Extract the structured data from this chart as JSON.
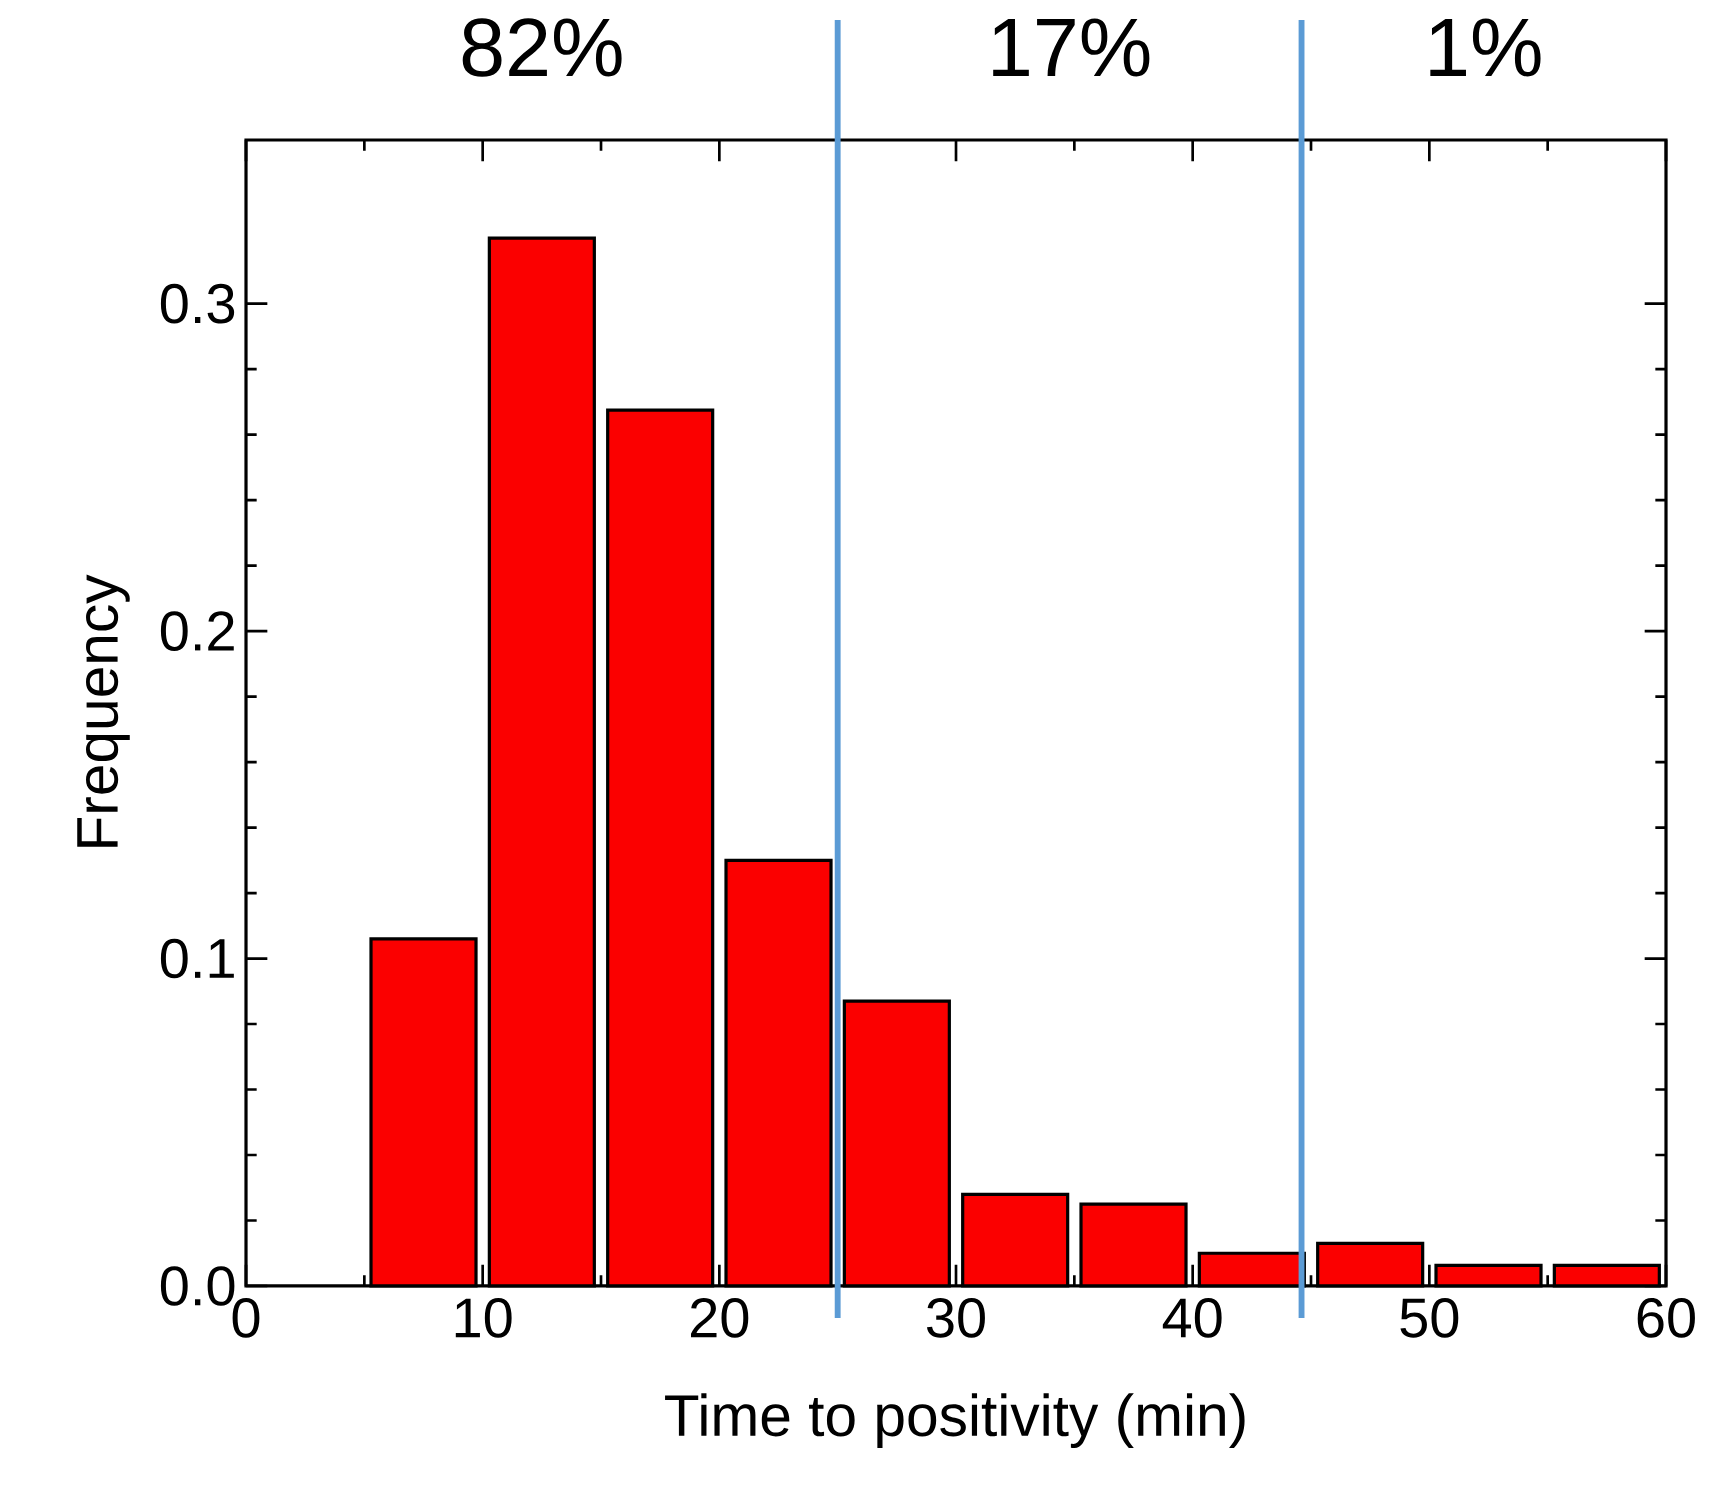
{
  "chart_data": {
    "type": "histogram",
    "xlabel": "Time to positivity (min)",
    "ylabel": "Frequency",
    "bins": [
      5,
      10,
      15,
      20,
      25,
      30,
      35,
      40,
      45,
      50,
      55,
      60
    ],
    "values": [
      0.106,
      0.32,
      0.2675,
      0.13,
      0.087,
      0.028,
      0.025,
      0.01,
      0.013,
      0.0063,
      0.0063
    ],
    "color": "#fb0000",
    "xlim": [
      0,
      60
    ],
    "ylim": [
      0,
      0.35
    ],
    "xticks": [
      0,
      10,
      20,
      30,
      40,
      50,
      60
    ],
    "yticks": [
      {
        "value": 0,
        "label": "0.0"
      },
      {
        "value": 0.1,
        "label": "0.1"
      },
      {
        "value": 0.2,
        "label": "0.2"
      },
      {
        "value": 0.3,
        "label": "0.3"
      }
    ],
    "ref_lines": [
      {
        "axis": "x",
        "value": 25,
        "color": "#5b9bd5"
      },
      {
        "axis": "x",
        "value": 44.6,
        "color": "#5b9bd5"
      }
    ],
    "annotations": [
      "82%",
      "17%",
      "1%"
    ]
  }
}
